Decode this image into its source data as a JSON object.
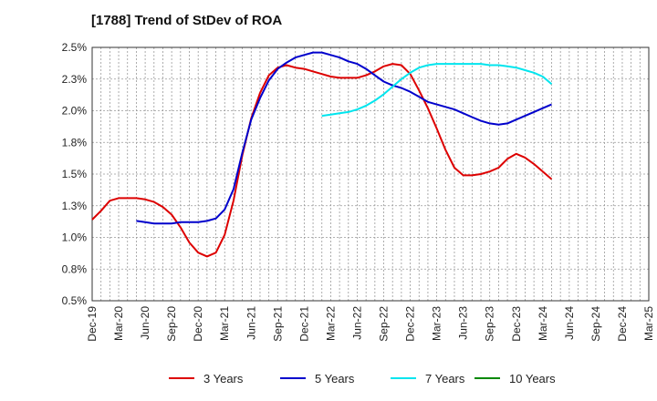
{
  "chart_data": {
    "type": "line",
    "title": "[1788]  Trend of StDev of ROA",
    "x_ticks": [
      "Dec-19",
      "Mar-20",
      "Jun-20",
      "Sep-20",
      "Dec-20",
      "Mar-21",
      "Jun-21",
      "Sep-21",
      "Dec-21",
      "Mar-22",
      "Jun-22",
      "Sep-22",
      "Dec-22",
      "Mar-23",
      "Jun-23",
      "Sep-23",
      "Dec-23",
      "Mar-24",
      "Jun-24",
      "Sep-24",
      "Dec-24",
      "Mar-25"
    ],
    "y_ticks": [
      "0.5%",
      "0.8%",
      "1.0%",
      "1.3%",
      "1.5%",
      "1.8%",
      "2.0%",
      "2.3%",
      "2.5%"
    ],
    "ylim": [
      0.5,
      2.5
    ],
    "grid": true,
    "legend_position": "bottom",
    "series": [
      {
        "name": "3 Years",
        "color": "#dd0000",
        "points": [
          [
            0,
            1.14
          ],
          [
            1,
            1.21
          ],
          [
            2,
            1.29
          ],
          [
            3,
            1.31
          ],
          [
            4,
            1.31
          ],
          [
            5,
            1.31
          ],
          [
            6,
            1.3
          ],
          [
            7,
            1.28
          ],
          [
            8,
            1.24
          ],
          [
            9,
            1.18
          ],
          [
            10,
            1.08
          ],
          [
            11,
            0.96
          ],
          [
            12,
            0.88
          ],
          [
            13,
            0.85
          ],
          [
            14,
            0.88
          ],
          [
            15,
            1.02
          ],
          [
            16,
            1.29
          ],
          [
            17,
            1.65
          ],
          [
            18,
            1.94
          ],
          [
            19,
            2.14
          ],
          [
            20,
            2.28
          ],
          [
            21,
            2.34
          ],
          [
            22,
            2.36
          ],
          [
            23,
            2.34
          ],
          [
            24,
            2.33
          ],
          [
            25,
            2.31
          ],
          [
            26,
            2.29
          ],
          [
            27,
            2.27
          ],
          [
            28,
            2.26
          ],
          [
            29,
            2.26
          ],
          [
            30,
            2.26
          ],
          [
            31,
            2.28
          ],
          [
            32,
            2.31
          ],
          [
            33,
            2.35
          ],
          [
            34,
            2.37
          ],
          [
            35,
            2.36
          ],
          [
            36,
            2.29
          ],
          [
            37,
            2.16
          ],
          [
            38,
            2.02
          ],
          [
            39,
            1.86
          ],
          [
            40,
            1.69
          ],
          [
            41,
            1.55
          ],
          [
            42,
            1.49
          ],
          [
            43,
            1.49
          ],
          [
            44,
            1.5
          ],
          [
            45,
            1.52
          ],
          [
            46,
            1.55
          ],
          [
            47,
            1.62
          ],
          [
            48,
            1.66
          ],
          [
            49,
            1.63
          ],
          [
            50,
            1.58
          ],
          [
            51,
            1.52
          ],
          [
            52,
            1.46
          ]
        ]
      },
      {
        "name": "5 Years",
        "color": "#0000cc",
        "points": [
          [
            5,
            1.13
          ],
          [
            6,
            1.12
          ],
          [
            7,
            1.11
          ],
          [
            8,
            1.11
          ],
          [
            9,
            1.11
          ],
          [
            10,
            1.12
          ],
          [
            11,
            1.12
          ],
          [
            12,
            1.12
          ],
          [
            13,
            1.13
          ],
          [
            14,
            1.15
          ],
          [
            15,
            1.22
          ],
          [
            16,
            1.38
          ],
          [
            17,
            1.67
          ],
          [
            18,
            1.93
          ],
          [
            19,
            2.1
          ],
          [
            20,
            2.24
          ],
          [
            21,
            2.33
          ],
          [
            22,
            2.38
          ],
          [
            23,
            2.42
          ],
          [
            24,
            2.44
          ],
          [
            25,
            2.46
          ],
          [
            26,
            2.46
          ],
          [
            27,
            2.44
          ],
          [
            28,
            2.42
          ],
          [
            29,
            2.39
          ],
          [
            30,
            2.37
          ],
          [
            31,
            2.33
          ],
          [
            32,
            2.28
          ],
          [
            33,
            2.23
          ],
          [
            34,
            2.2
          ],
          [
            35,
            2.18
          ],
          [
            36,
            2.15
          ],
          [
            37,
            2.11
          ],
          [
            38,
            2.07
          ],
          [
            39,
            2.05
          ],
          [
            40,
            2.03
          ],
          [
            41,
            2.01
          ],
          [
            42,
            1.98
          ],
          [
            43,
            1.95
          ],
          [
            44,
            1.92
          ],
          [
            45,
            1.9
          ],
          [
            46,
            1.89
          ],
          [
            47,
            1.9
          ],
          [
            48,
            1.93
          ],
          [
            49,
            1.96
          ],
          [
            50,
            1.99
          ],
          [
            51,
            2.02
          ],
          [
            52,
            2.05
          ]
        ]
      },
      {
        "name": "7 Years",
        "color": "#00e5ee",
        "points": [
          [
            26,
            1.96
          ],
          [
            27,
            1.97
          ],
          [
            28,
            1.98
          ],
          [
            29,
            1.99
          ],
          [
            30,
            2.01
          ],
          [
            31,
            2.04
          ],
          [
            32,
            2.08
          ],
          [
            33,
            2.13
          ],
          [
            34,
            2.19
          ],
          [
            35,
            2.25
          ],
          [
            36,
            2.3
          ],
          [
            37,
            2.34
          ],
          [
            38,
            2.36
          ],
          [
            39,
            2.37
          ],
          [
            40,
            2.37
          ],
          [
            41,
            2.37
          ],
          [
            42,
            2.37
          ],
          [
            43,
            2.37
          ],
          [
            44,
            2.37
          ],
          [
            45,
            2.36
          ],
          [
            46,
            2.36
          ],
          [
            47,
            2.35
          ],
          [
            48,
            2.34
          ],
          [
            49,
            2.32
          ],
          [
            50,
            2.3
          ],
          [
            51,
            2.27
          ],
          [
            52,
            2.21
          ]
        ]
      },
      {
        "name": "10 Years",
        "color": "#008800",
        "points": []
      }
    ]
  }
}
